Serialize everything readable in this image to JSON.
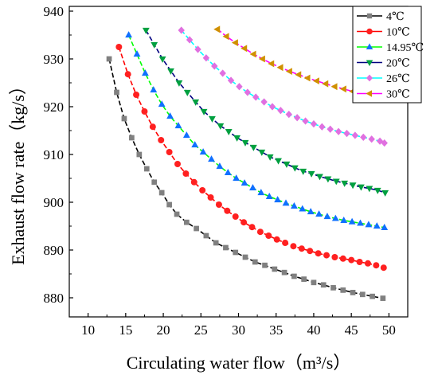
{
  "chart_data": {
    "type": "scatter",
    "title": "",
    "xlabel": "Circulating water flow（m³/s）",
    "ylabel": "Exhaust flow rate（kg/s）",
    "xlim": [
      7.5,
      52.5
    ],
    "ylim": [
      876,
      941
    ],
    "xticks": [
      10,
      15,
      20,
      25,
      30,
      35,
      40,
      45,
      50
    ],
    "yticks": [
      880,
      890,
      900,
      910,
      920,
      930,
      940
    ],
    "legend_position": "top-right",
    "series": [
      {
        "name": "4℃",
        "color": "#000000",
        "marker": "square-gray",
        "x": [
          12.8,
          13.8,
          14.8,
          15.8,
          16.8,
          17.8,
          18.8,
          19.8,
          20.8,
          21.8,
          23.1,
          24.4,
          25.7,
          27.0,
          28.3,
          29.6,
          30.9,
          32.2,
          33.5,
          34.8,
          36.1,
          37.4,
          38.7,
          40.0,
          41.3,
          42.6,
          43.9,
          45.2,
          46.5,
          47.8,
          49.2
        ],
        "y": [
          930.0,
          923.0,
          917.5,
          913.5,
          910.0,
          907.0,
          904.2,
          902.0,
          899.5,
          897.5,
          895.8,
          894.5,
          893.0,
          891.5,
          890.5,
          889.5,
          888.5,
          887.5,
          886.8,
          886.0,
          885.3,
          884.5,
          883.9,
          883.2,
          882.7,
          882.1,
          881.6,
          881.1,
          880.7,
          880.3,
          879.9
        ]
      },
      {
        "name": "10℃",
        "color": "#ff0000",
        "marker": "circle",
        "x": [
          14.1,
          15.3,
          16.4,
          17.5,
          18.6,
          19.7,
          20.8,
          21.9,
          23.0,
          24.1,
          25.2,
          26.3,
          27.4,
          28.5,
          29.6,
          30.7,
          31.8,
          32.9,
          34.0,
          35.1,
          36.2,
          37.3,
          38.4,
          39.5,
          40.6,
          41.7,
          42.8,
          43.9,
          45.0,
          46.1,
          47.2,
          48.3,
          49.3
        ],
        "y": [
          932.5,
          926.8,
          922.5,
          919.0,
          915.8,
          913.0,
          910.5,
          908.0,
          906.0,
          904.2,
          902.5,
          901.0,
          899.5,
          898.2,
          897.0,
          895.8,
          894.8,
          893.8,
          893.0,
          892.2,
          891.5,
          890.8,
          890.3,
          889.8,
          889.3,
          888.9,
          888.5,
          888.2,
          887.9,
          887.5,
          887.2,
          886.8,
          886.3
        ]
      },
      {
        "name": "14.95℃",
        "color": "#00ff00",
        "marker": "triangle-up",
        "x": [
          15.4,
          16.5,
          17.6,
          18.7,
          19.8,
          20.9,
          22.0,
          23.1,
          24.2,
          25.3,
          26.4,
          27.5,
          28.6,
          29.7,
          30.8,
          31.9,
          33.0,
          34.1,
          35.2,
          36.3,
          37.4,
          38.5,
          39.6,
          40.7,
          41.8,
          42.9,
          44.0,
          45.1,
          46.2,
          47.3,
          48.4,
          49.4
        ],
        "y": [
          935.0,
          931.0,
          927.0,
          923.5,
          920.5,
          918.0,
          916.0,
          914.0,
          912.0,
          910.5,
          909.0,
          907.5,
          906.2,
          905.0,
          904.0,
          903.0,
          902.0,
          901.2,
          900.5,
          899.8,
          899.2,
          898.6,
          898.0,
          897.5,
          897.0,
          896.6,
          896.2,
          895.9,
          895.6,
          895.3,
          895.0,
          894.7
        ]
      },
      {
        "name": "20℃",
        "color": "#000080",
        "marker": "triangle-down",
        "x": [
          17.7,
          18.8,
          19.9,
          21.0,
          22.1,
          23.2,
          24.3,
          25.4,
          26.5,
          27.6,
          28.7,
          29.8,
          30.9,
          32.0,
          33.1,
          34.2,
          35.3,
          36.4,
          37.5,
          38.6,
          39.7,
          40.8,
          41.9,
          43.0,
          44.1,
          45.2,
          46.3,
          47.4,
          48.5,
          49.5
        ],
        "y": [
          936.0,
          933.0,
          930.0,
          927.5,
          925.0,
          923.0,
          921.0,
          919.0,
          917.5,
          916.0,
          914.8,
          913.5,
          912.5,
          911.5,
          910.5,
          909.5,
          908.7,
          908.0,
          907.2,
          906.5,
          906.0,
          905.4,
          904.9,
          904.4,
          904.0,
          903.6,
          903.2,
          902.9,
          902.5,
          902.0
        ]
      },
      {
        "name": "26℃",
        "color": "#00ffff",
        "marker": "diamond",
        "x": [
          22.4,
          23.5,
          24.6,
          25.7,
          26.8,
          27.9,
          29.0,
          30.1,
          31.2,
          32.3,
          33.4,
          34.5,
          35.6,
          36.7,
          37.8,
          38.9,
          40.0,
          41.1,
          42.2,
          43.3,
          44.4,
          45.5,
          46.6,
          47.7,
          48.8,
          49.4
        ],
        "y": [
          936.0,
          934.0,
          932.0,
          930.2,
          928.5,
          927.0,
          925.5,
          924.2,
          923.0,
          922.0,
          921.0,
          920.0,
          919.2,
          918.4,
          917.7,
          917.0,
          916.4,
          915.8,
          915.3,
          914.8,
          914.4,
          914.0,
          913.6,
          913.2,
          912.8,
          912.4
        ]
      },
      {
        "name": "30℃",
        "color": "#ff00ff",
        "marker": "triangle-left",
        "x": [
          27.2,
          28.4,
          29.6,
          30.8,
          32.0,
          33.2,
          34.4,
          35.6,
          36.8,
          38.0,
          39.2,
          40.4,
          41.6,
          42.8,
          44.0,
          45.2,
          46.4,
          47.6,
          48.8
        ],
        "y": [
          936.2,
          934.7,
          933.4,
          932.2,
          931.0,
          930.0,
          929.0,
          928.2,
          927.4,
          926.7,
          926.0,
          925.4,
          924.8,
          924.2,
          923.7,
          923.2,
          922.7,
          922.3,
          921.5
        ]
      }
    ]
  }
}
